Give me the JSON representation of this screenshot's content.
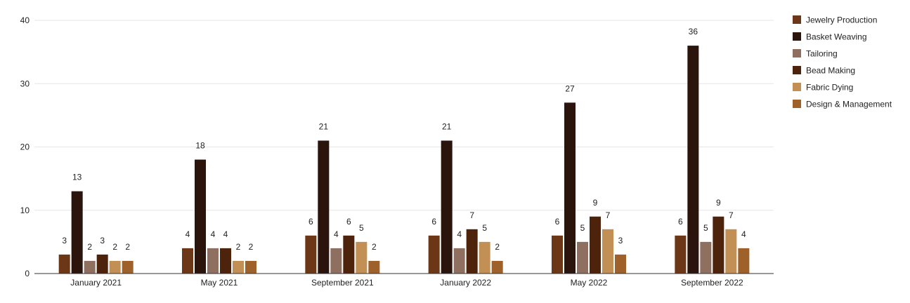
{
  "chart_data": {
    "type": "bar",
    "categories": [
      "January 2021",
      "May 2021",
      "September 2021",
      "January 2022",
      "May 2022",
      "September 2022"
    ],
    "series": [
      {
        "name": "Jewelry Production",
        "color": "#6b3716",
        "values": [
          3,
          4,
          6,
          6,
          6,
          6
        ]
      },
      {
        "name": "Basket Weaving",
        "color": "#2a140c",
        "values": [
          13,
          18,
          21,
          21,
          27,
          36
        ]
      },
      {
        "name": "Tailoring",
        "color": "#8f7060",
        "values": [
          2,
          4,
          4,
          4,
          5,
          5
        ]
      },
      {
        "name": "Bead Making",
        "color": "#4d230c",
        "values": [
          3,
          4,
          6,
          7,
          9,
          9
        ]
      },
      {
        "name": "Fabric Dying",
        "color": "#c29055",
        "values": [
          2,
          2,
          5,
          5,
          7,
          7
        ]
      },
      {
        "name": "Design & Management",
        "color": "#9e6129",
        "values": [
          2,
          2,
          2,
          2,
          3,
          4
        ]
      }
    ],
    "title": "",
    "xlabel": "",
    "ylabel": "",
    "ylim": [
      0,
      40
    ],
    "yticks": [
      0,
      10,
      20,
      30,
      40
    ],
    "grid": true,
    "legend_position": "right",
    "data_labels": true
  }
}
